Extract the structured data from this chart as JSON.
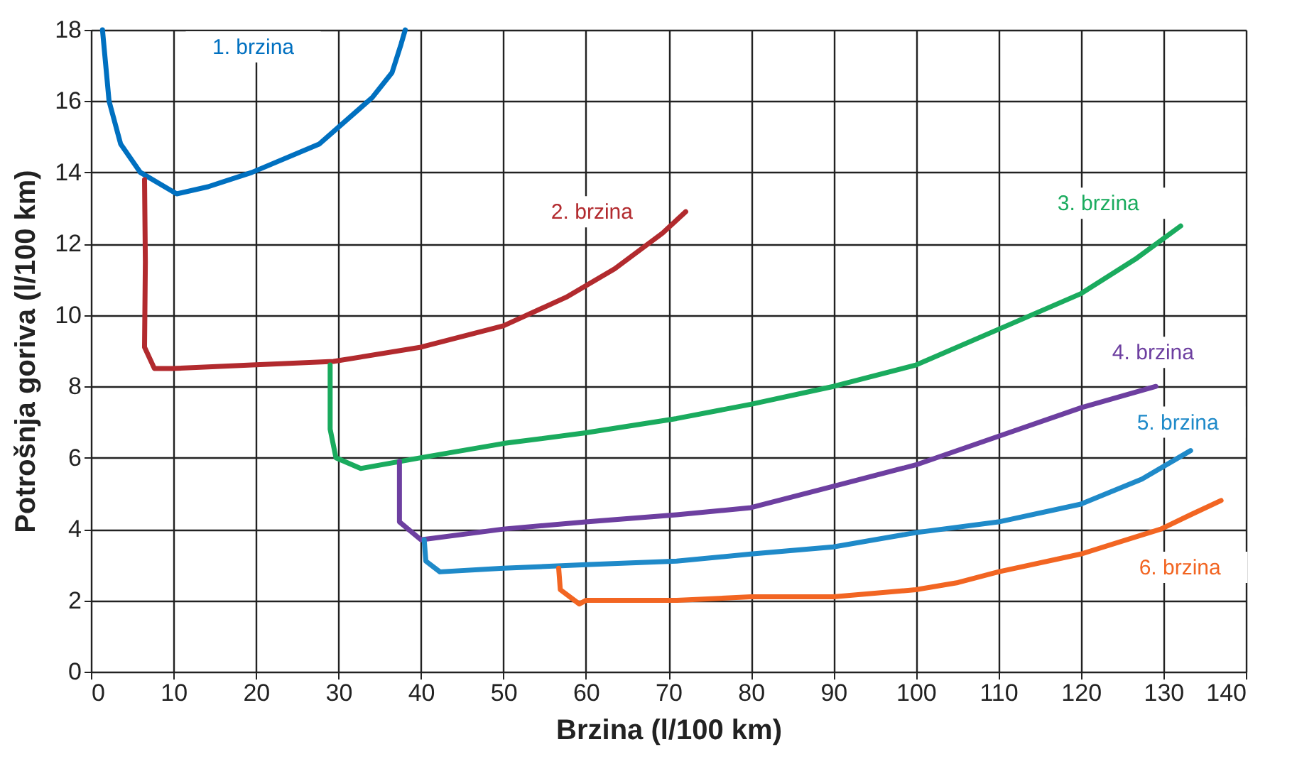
{
  "chart_data": {
    "type": "line",
    "xlabel": "Brzina (l/100 km)",
    "ylabel": "Potrošnja goriva (l/100 km)",
    "xlim": [
      0,
      140
    ],
    "xticks": [
      0,
      10,
      20,
      30,
      40,
      50,
      60,
      70,
      80,
      90,
      100,
      110,
      120,
      130,
      140
    ],
    "ylim": [
      0,
      18
    ],
    "yticks": [
      0,
      2,
      4,
      6,
      8,
      10,
      12,
      14,
      16,
      18
    ],
    "grid": true,
    "marker": "none",
    "line_style": "solid",
    "series": [
      {
        "name": "1. brzina",
        "color": "#0070c0",
        "x": [
          1.4,
          2.2,
          3.6,
          6.0,
          10.4,
          14.2,
          19.5,
          27.7,
          34.1,
          36.5,
          37.6,
          38.1
        ],
        "values": [
          18,
          16,
          14.8,
          14,
          13.4,
          13.6,
          14,
          14.8,
          16.1,
          16.8,
          17.6,
          18
        ]
      },
      {
        "name": "2. brzina",
        "color": "#b22a2e",
        "x": [
          6.5,
          6.6,
          6.5,
          7.7,
          9.8,
          19.5,
          29.4,
          40,
          50,
          57.6,
          63.5,
          69.3,
          72.1
        ],
        "values": [
          13.8,
          11.5,
          9.1,
          8.5,
          8.5,
          8.6,
          8.7,
          9.1,
          9.7,
          10.5,
          11.3,
          12.3,
          12.9
        ]
      },
      {
        "name": "3. brzina",
        "color": "#1aab5e",
        "x": [
          29,
          29,
          29.7,
          32.7,
          40,
          50,
          60,
          71,
          80,
          90,
          100,
          110,
          120,
          126.8,
          132.1
        ],
        "values": [
          8.6,
          6.8,
          6.0,
          5.7,
          6.0,
          6.4,
          6.7,
          7.1,
          7.5,
          8.0,
          8.6,
          9.6,
          10.6,
          11.6,
          12.5
        ]
      },
      {
        "name": "4. brzina",
        "color": "#6d3fa0",
        "x": [
          37.4,
          37.4,
          40,
          50,
          60,
          71,
          80,
          90,
          100,
          110,
          120,
          129.1
        ],
        "values": [
          5.9,
          4.2,
          3.7,
          4.0,
          4.2,
          4.4,
          4.6,
          5.2,
          5.8,
          6.6,
          7.4,
          8.0
        ]
      },
      {
        "name": "5. brzina",
        "color": "#1f8ac9",
        "x": [
          40.4,
          40.6,
          42.3,
          50,
          60,
          71,
          80,
          90,
          100,
          110,
          120,
          127.4,
          133.3
        ],
        "values": [
          3.7,
          3.1,
          2.8,
          2.9,
          3.0,
          3.1,
          3.3,
          3.5,
          3.9,
          4.2,
          4.7,
          5.4,
          6.2
        ]
      },
      {
        "name": "6. brzina",
        "color": "#f26522",
        "x": [
          56.7,
          56.9,
          59.2,
          60,
          71,
          80,
          90,
          100,
          105.1,
          110,
          120,
          129.7,
          133.3,
          137
        ],
        "values": [
          2.9,
          2.3,
          1.9,
          2.0,
          2.0,
          2.1,
          2.1,
          2.3,
          2.5,
          2.8,
          3.3,
          4.0,
          4.4,
          4.8
        ]
      }
    ]
  }
}
